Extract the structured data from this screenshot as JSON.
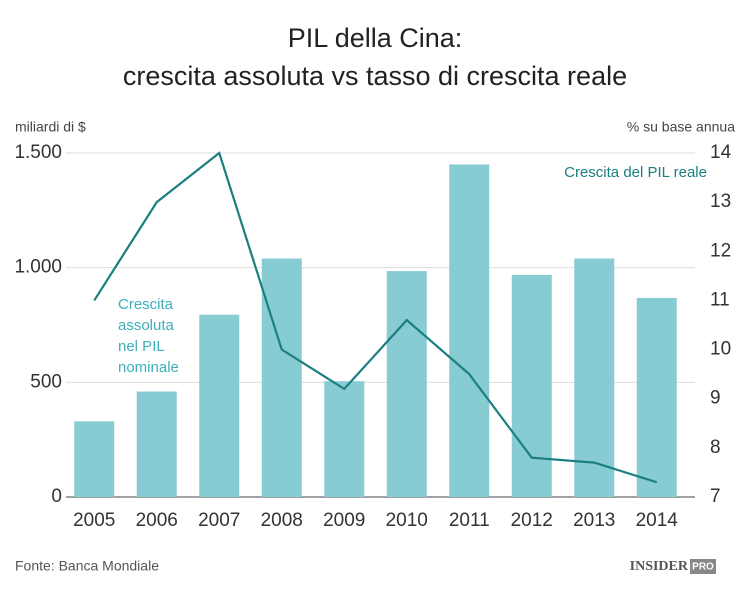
{
  "chart_data": {
    "type": "bar-line",
    "title": [
      "PIL della Cina:",
      "crescita assoluta vs tasso di crescita reale"
    ],
    "y_label": "miliardi di $",
    "y2_label": "% su base annua",
    "categories": [
      "2005",
      "2006",
      "2007",
      "2008",
      "2009",
      "2010",
      "2011",
      "2012",
      "2013",
      "2014"
    ],
    "series": [
      {
        "type": "bar",
        "color": "#88ccd3",
        "values": [
          330,
          460,
          795,
          1040,
          505,
          985,
          1450,
          968,
          1040,
          868
        ]
      },
      {
        "type": "line",
        "axis": "y2",
        "color": "#1b7f82",
        "values": [
          11.0,
          13.0,
          14.0,
          10.0,
          9.2,
          10.6,
          9.5,
          7.8,
          7.7,
          7.3
        ]
      }
    ],
    "annotations": {
      "bar": [
        "Crescita",
        "assoluta",
        "nel PIL",
        "nominale"
      ],
      "line": "Crescita del PIL reale"
    },
    "ylim": [
      0,
      1500
    ],
    "yticks": [
      0,
      500,
      {
        "value": 1000,
        "label": "1.000"
      },
      {
        "value": 1500,
        "label": "1.500"
      }
    ],
    "y2lim": [
      7,
      14
    ],
    "y2ticks": [
      7,
      8,
      9,
      10,
      11,
      12,
      13,
      14
    ],
    "grid": true,
    "source": "Fonte: Banca Mondiale",
    "logo": [
      "INSIDER",
      "PRO"
    ]
  }
}
